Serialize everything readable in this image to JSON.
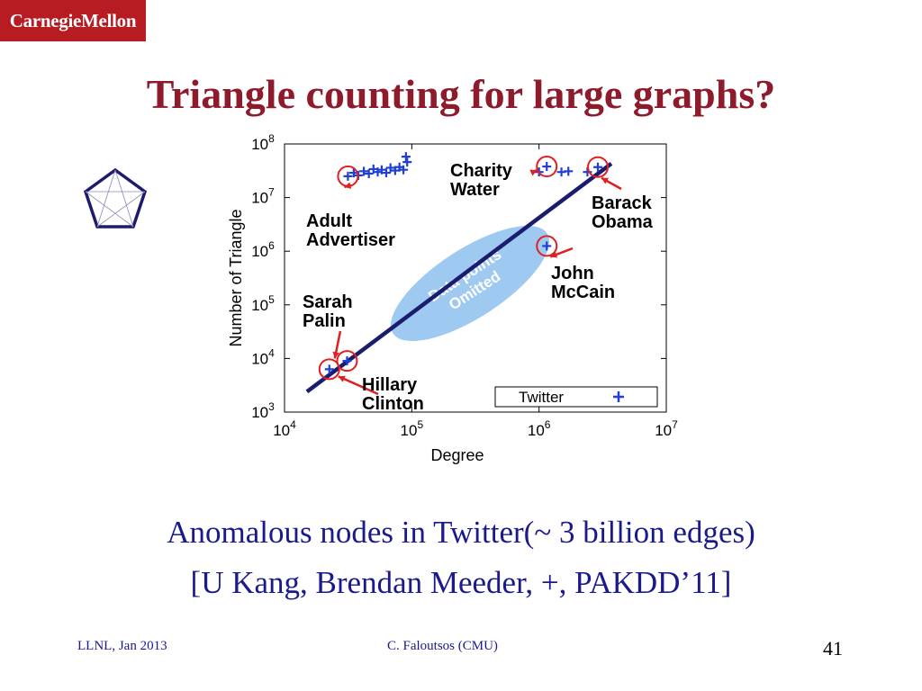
{
  "header": {
    "logo_text": "CarnegieMellon"
  },
  "slide": {
    "title": "Triangle counting for large graphs?"
  },
  "chart_data": {
    "type": "scatter",
    "xlabel": "Degree",
    "ylabel": "Number of Triangle",
    "x_scale": "log",
    "y_scale": "log",
    "xlim": [
      10000,
      10000000
    ],
    "ylim": [
      1000,
      100000000
    ],
    "x_ticks": [
      {
        "value": 10000,
        "mantissa": "10",
        "exp": "4"
      },
      {
        "value": 100000,
        "mantissa": "10",
        "exp": "5"
      },
      {
        "value": 1000000,
        "mantissa": "10",
        "exp": "6"
      },
      {
        "value": 10000000,
        "mantissa": "10",
        "exp": "7"
      }
    ],
    "y_ticks": [
      {
        "value": 1000,
        "mantissa": "10",
        "exp": "3"
      },
      {
        "value": 10000,
        "mantissa": "10",
        "exp": "4"
      },
      {
        "value": 100000,
        "mantissa": "10",
        "exp": "5"
      },
      {
        "value": 1000000,
        "mantissa": "10",
        "exp": "6"
      },
      {
        "value": 10000000,
        "mantissa": "10",
        "exp": "7"
      },
      {
        "value": 100000000,
        "mantissa": "10",
        "exp": "8"
      }
    ],
    "legend": {
      "label": "Twitter",
      "position": "bottom-right"
    },
    "series": [
      {
        "name": "Twitter",
        "color": "#1f3fd6",
        "points": [
          [
            22500,
            6300
          ],
          [
            31000,
            9000
          ],
          [
            31500,
            25000000
          ],
          [
            35000,
            29000000
          ],
          [
            38000,
            26000000
          ],
          [
            42000,
            31000000
          ],
          [
            46000,
            28000000
          ],
          [
            50000,
            34000000
          ],
          [
            54000,
            30000000
          ],
          [
            58000,
            33000000
          ],
          [
            63000,
            29000000
          ],
          [
            68000,
            36000000
          ],
          [
            74000,
            32000000
          ],
          [
            80000,
            37000000
          ],
          [
            86000,
            33000000
          ],
          [
            90000,
            58000000
          ],
          [
            92000,
            46000000
          ],
          [
            1000000,
            30000000
          ],
          [
            1150000,
            38000000
          ],
          [
            1500000,
            30000000
          ],
          [
            1700000,
            31000000
          ],
          [
            2400000,
            30000000
          ],
          [
            1150000,
            1250000
          ],
          [
            2900000,
            37000000
          ]
        ]
      }
    ],
    "fit_line": {
      "x": [
        15000,
        3700000
      ],
      "y": [
        2400,
        43000000
      ],
      "color": "#1c1c6e"
    },
    "omitted_region": {
      "label": "Data points Omitted",
      "color": "#9ec9f1"
    },
    "circled_points": [
      [
        22500,
        6300
      ],
      [
        31000,
        9000
      ],
      [
        31500,
        25000000
      ],
      [
        1150000,
        38000000
      ],
      [
        2900000,
        37000000
      ],
      [
        1150000,
        1250000
      ]
    ],
    "annotations": [
      {
        "lines": [
          "Adult",
          "Advertiser"
        ]
      },
      {
        "lines": [
          "Charity",
          "Water"
        ]
      },
      {
        "lines": [
          "Barack",
          "Obama"
        ]
      },
      {
        "lines": [
          "John",
          "McCain"
        ]
      },
      {
        "lines": [
          "Sarah",
          "Palin"
        ]
      },
      {
        "lines": [
          "Hillary",
          "Clinton"
        ]
      }
    ]
  },
  "caption": {
    "line1": "Anomalous nodes in Twitter(~ 3 billion edges)",
    "line2": "[U Kang, Brendan Meeder, +, PAKDD’11]"
  },
  "footer": {
    "left": "LLNL, Jan 2013",
    "center": "C. Faloutsos (CMU)",
    "page": "41"
  }
}
